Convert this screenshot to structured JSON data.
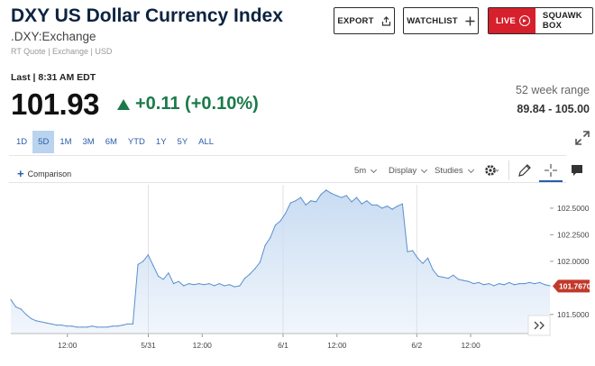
{
  "header": {
    "title": "DXY US Dollar Currency Index",
    "subtitle": ".DXY:Exchange",
    "quote_type": "RT Quote | Exchange | USD"
  },
  "actions": {
    "export_label": "EXPORT",
    "watchlist_label": "WATCHLIST",
    "live_label": "LIVE",
    "squawk_label": "SQUAWK BOX",
    "live_color": "#d6202c"
  },
  "quote": {
    "last_label": "Last | 8:31 AM EDT",
    "price": "101.93",
    "change": "+0.11 (+0.10%)",
    "change_color": "#1b7a4a",
    "week_range_label": "52 week range",
    "week_range_value": "89.84 - 105.00"
  },
  "ranges": [
    {
      "label": "1D",
      "active": false
    },
    {
      "label": "5D",
      "active": true
    },
    {
      "label": "1M",
      "active": false
    },
    {
      "label": "3M",
      "active": false
    },
    {
      "label": "6M",
      "active": false
    },
    {
      "label": "YTD",
      "active": false
    },
    {
      "label": "1Y",
      "active": false
    },
    {
      "label": "5Y",
      "active": false
    },
    {
      "label": "ALL",
      "active": false
    }
  ],
  "toolbar": {
    "comparison_label": "Comparison",
    "interval_label": "5m",
    "display_label": "Display",
    "studies_label": "Studies",
    "icons": [
      "gear-icon",
      "pencil-icon",
      "crosshair-icon",
      "comment-icon",
      "expand-icon"
    ]
  },
  "chart_data": {
    "type": "area",
    "x_tick_labels": [
      "12:00",
      "5/31",
      "12:00",
      "6/1",
      "12:00",
      "6/2",
      "12:00"
    ],
    "y_tick_labels": [
      "102.5000",
      "102.2500",
      "102.0000",
      "101.5000"
    ],
    "y_ticks": [
      102.5,
      102.25,
      102.0,
      101.5
    ],
    "ylim": [
      101.32,
      102.72
    ],
    "last_value_label": "101.7670",
    "last_value": 101.767,
    "line_color": "#5a8fcf",
    "area_color": "#c9dcf2",
    "last_value_color": "#c0392b",
    "values": [
      101.64,
      101.57,
      101.55,
      101.5,
      101.46,
      101.44,
      101.43,
      101.42,
      101.41,
      101.4,
      101.4,
      101.39,
      101.39,
      101.38,
      101.38,
      101.38,
      101.39,
      101.38,
      101.38,
      101.38,
      101.39,
      101.39,
      101.4,
      101.41,
      101.41,
      101.97,
      102.0,
      102.06,
      101.96,
      101.86,
      101.83,
      101.89,
      101.79,
      101.81,
      101.77,
      101.79,
      101.78,
      101.79,
      101.78,
      101.79,
      101.77,
      101.79,
      101.77,
      101.78,
      101.76,
      101.77,
      101.84,
      101.88,
      101.93,
      101.99,
      102.15,
      102.22,
      102.34,
      102.38,
      102.45,
      102.55,
      102.57,
      102.6,
      102.53,
      102.57,
      102.56,
      102.63,
      102.67,
      102.64,
      102.62,
      102.6,
      102.62,
      102.56,
      102.6,
      102.54,
      102.57,
      102.53,
      102.53,
      102.5,
      102.52,
      102.49,
      102.52,
      102.54,
      102.09,
      102.1,
      102.03,
      101.98,
      102.03,
      101.92,
      101.86,
      101.85,
      101.84,
      101.87,
      101.83,
      101.82,
      101.81,
      101.79,
      101.8,
      101.78,
      101.79,
      101.77,
      101.79,
      101.78,
      101.8,
      101.78,
      101.79,
      101.79,
      101.8,
      101.79,
      101.8,
      101.78,
      101.77
    ]
  }
}
